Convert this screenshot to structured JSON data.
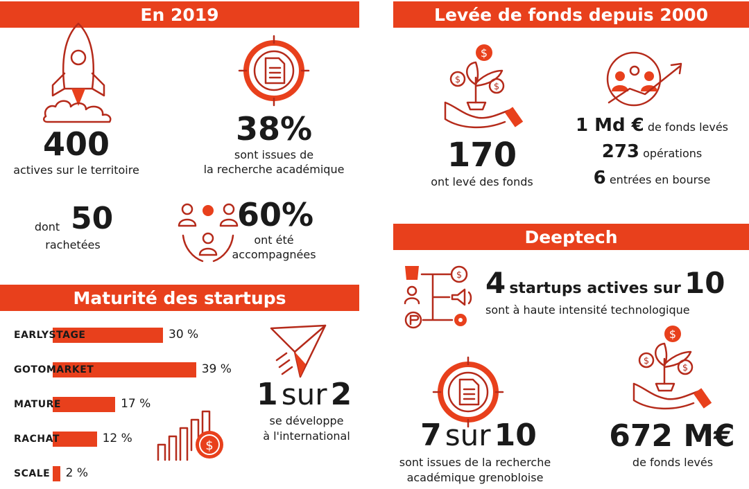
{
  "section_2019": {
    "title": "En 2019",
    "active_count": "400",
    "active_label": "actives sur le territoire",
    "academic_pct": "38%",
    "academic_label_1": "sont issues de",
    "academic_label_2": "la recherche académique",
    "acquired_prefix": "dont",
    "acquired_count": "50",
    "acquired_label": "rachetées",
    "supported_pct": "60%",
    "supported_label_1": "ont été",
    "supported_label_2": "accompagnées"
  },
  "section_funds": {
    "title": "Levée de fonds depuis 2000",
    "raised_count": "170",
    "raised_label": "ont levé des fonds",
    "amount_value": "1 Md €",
    "amount_label": "de fonds levés",
    "operations_value": "273",
    "operations_label": "opérations",
    "ipo_value": "6",
    "ipo_label": "entrées en bourse"
  },
  "section_maturity": {
    "title": "Maturité des startups",
    "international_a": "1",
    "international_sur": "sur",
    "international_b": "2",
    "international_label_1": "se développe",
    "international_label_2": "à l'international"
  },
  "chart_data": {
    "type": "bar",
    "orientation": "horizontal",
    "categories": [
      "EARLYSTAGE",
      "GOTOMARKET",
      "MATURE",
      "RACHAT",
      "SCALE"
    ],
    "values": [
      30,
      39,
      17,
      12,
      2
    ],
    "value_labels": [
      "30 %",
      "39 %",
      "17 %",
      "12 %",
      "2 %"
    ]
  },
  "section_deeptech": {
    "title": "Deeptech",
    "ratio_a": "4",
    "ratio_mid": "startups actives sur",
    "ratio_b": "10",
    "ratio_label": "sont à haute intensité technologique",
    "academic_a": "7",
    "academic_sur": "sur",
    "academic_b": "10",
    "academic_label_1": "sont issues de la recherche",
    "academic_label_2": "académique grenobloise",
    "funds_value": "672 M€",
    "funds_label": "de fonds levés"
  },
  "colors": {
    "accent": "#e8401c",
    "icon_stroke": "#b52a1a",
    "text": "#1a1a1a"
  }
}
